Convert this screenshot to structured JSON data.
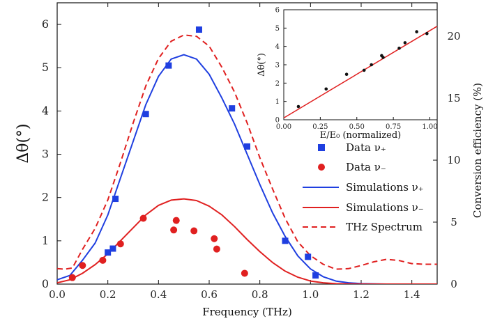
{
  "chart_data": [
    {
      "type": "scatter+line",
      "title": "",
      "xlabel": "Frequency (THz)",
      "ylabel": "Δθ(°)",
      "y2label": "Conversion efficiency (%)",
      "xlim": [
        0,
        1.5
      ],
      "ylim": [
        0,
        6.5
      ],
      "y2lim": [
        0,
        22.7
      ],
      "xticks": [
        "0.0",
        "0.2",
        "0.4",
        "0.6",
        "0.8",
        "1.0",
        "1.2",
        "1.4"
      ],
      "yticks": [
        "0",
        "1",
        "2",
        "3",
        "4",
        "5",
        "6"
      ],
      "y2ticks": [
        "0",
        "5",
        "10",
        "15",
        "20"
      ],
      "legend_position": "right-middle",
      "series": [
        {
          "name": "Data ν₊",
          "kind": "points",
          "marker": "square",
          "color": "#1f3fe0",
          "x": [
            0.2,
            0.22,
            0.23,
            0.35,
            0.44,
            0.56,
            0.69,
            0.75,
            0.9,
            0.99,
            1.02
          ],
          "y": [
            0.73,
            0.82,
            1.97,
            3.93,
            5.05,
            5.88,
            4.06,
            3.18,
            1.0,
            0.63,
            0.2
          ]
        },
        {
          "name": "Data ν₋",
          "kind": "points",
          "marker": "circle",
          "color": "#e02020",
          "x": [
            0.06,
            0.1,
            0.18,
            0.25,
            0.34,
            0.46,
            0.47,
            0.54,
            0.62,
            0.63,
            0.74
          ],
          "y": [
            0.15,
            0.43,
            0.55,
            0.93,
            1.52,
            1.25,
            1.47,
            1.23,
            1.05,
            0.81,
            0.25
          ]
        },
        {
          "name": "Simulations ν₊",
          "kind": "line",
          "color": "#1f3fe0",
          "x": [
            0.0,
            0.05,
            0.1,
            0.15,
            0.2,
            0.25,
            0.3,
            0.35,
            0.4,
            0.45,
            0.5,
            0.55,
            0.6,
            0.65,
            0.7,
            0.75,
            0.8,
            0.85,
            0.9,
            0.95,
            1.0,
            1.05,
            1.1,
            1.15,
            1.2,
            1.3,
            1.4,
            1.5
          ],
          "y": [
            0.1,
            0.2,
            0.55,
            0.95,
            1.6,
            2.45,
            3.3,
            4.15,
            4.8,
            5.2,
            5.3,
            5.2,
            4.85,
            4.3,
            3.7,
            3.0,
            2.3,
            1.65,
            1.1,
            0.65,
            0.35,
            0.17,
            0.07,
            0.03,
            0.01,
            0.0,
            0.0,
            0.0
          ]
        },
        {
          "name": "Simulations ν₋",
          "kind": "line",
          "color": "#e02020",
          "x": [
            0.0,
            0.05,
            0.1,
            0.15,
            0.2,
            0.25,
            0.3,
            0.35,
            0.4,
            0.45,
            0.5,
            0.55,
            0.6,
            0.65,
            0.7,
            0.75,
            0.8,
            0.85,
            0.9,
            0.95,
            1.0,
            1.05,
            1.1,
            1.2,
            1.3,
            1.4,
            1.5
          ],
          "y": [
            0.03,
            0.1,
            0.25,
            0.45,
            0.7,
            1.0,
            1.3,
            1.6,
            1.82,
            1.94,
            1.97,
            1.93,
            1.8,
            1.6,
            1.33,
            1.03,
            0.75,
            0.5,
            0.3,
            0.16,
            0.07,
            0.03,
            0.01,
            0.0,
            0.0,
            0.0,
            0.0
          ]
        },
        {
          "name": "THz Spectrum",
          "kind": "dashed-line",
          "axis": "y2",
          "color": "#e02020",
          "x": [
            0.0,
            0.03,
            0.06,
            0.1,
            0.15,
            0.2,
            0.25,
            0.3,
            0.35,
            0.4,
            0.45,
            0.5,
            0.55,
            0.6,
            0.65,
            0.7,
            0.75,
            0.8,
            0.85,
            0.9,
            0.95,
            1.0,
            1.05,
            1.1,
            1.15,
            1.2,
            1.25,
            1.3,
            1.35,
            1.4,
            1.45,
            1.5
          ],
          "y": [
            1.25,
            1.2,
            1.3,
            2.8,
            4.5,
            6.8,
            9.8,
            13.0,
            16.0,
            18.2,
            19.6,
            20.1,
            20.0,
            19.2,
            17.5,
            15.5,
            13.0,
            10.2,
            7.7,
            5.3,
            3.4,
            2.3,
            1.6,
            1.2,
            1.25,
            1.5,
            1.8,
            2.0,
            1.9,
            1.65,
            1.6,
            1.6
          ]
        }
      ]
    },
    {
      "type": "scatter+line",
      "title": "",
      "xlabel": "E/E₀ (normalized)",
      "ylabel": "Δθ(°)",
      "xlim": [
        0,
        1.05
      ],
      "ylim": [
        0,
        6
      ],
      "xticks": [
        "0.00",
        "0.25",
        "0.50",
        "0.75",
        "1.00"
      ],
      "yticks": [
        "0",
        "1",
        "2",
        "3",
        "4",
        "5",
        "6"
      ],
      "points": {
        "color": "#111111",
        "x": [
          0.1,
          0.29,
          0.43,
          0.55,
          0.6,
          0.67,
          0.68,
          0.79,
          0.83,
          0.91,
          0.98
        ],
        "y": [
          0.72,
          1.68,
          2.48,
          2.7,
          3.0,
          3.5,
          3.4,
          3.9,
          4.2,
          4.8,
          4.7
        ]
      },
      "fit": {
        "color": "#e02020",
        "x": [
          0.0,
          1.05
        ],
        "y": [
          0.1,
          5.1
        ]
      }
    }
  ]
}
